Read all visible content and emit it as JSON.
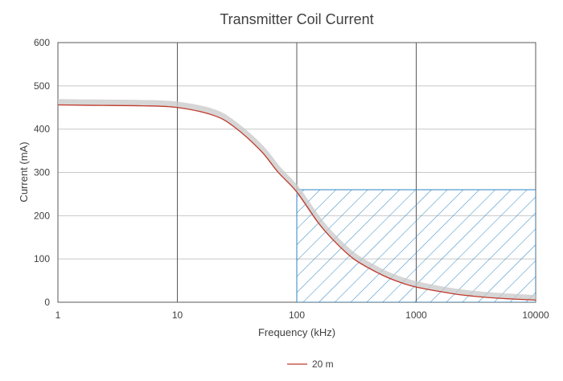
{
  "chart_data": {
    "type": "line",
    "title": "Transmitter Coil Current",
    "xlabel": "Frequency (kHz)",
    "ylabel": "Current (mA)",
    "x_scale": "log",
    "xlim": [
      1,
      10000
    ],
    "ylim": [
      0,
      600
    ],
    "x_ticks": [
      "1",
      "10",
      "100",
      "1000",
      "10000"
    ],
    "y_ticks": [
      "0",
      "100",
      "200",
      "300",
      "400",
      "500",
      "600"
    ],
    "grid": true,
    "legend_position": "bottom-center",
    "series": [
      {
        "name": "20 m",
        "color": "#c0392b",
        "x": [
          1,
          2,
          5,
          10,
          20,
          30,
          50,
          70,
          100,
          150,
          200,
          300,
          500,
          700,
          1000,
          2000,
          3000,
          5000,
          10000
        ],
        "values": [
          456,
          455,
          454,
          450,
          432,
          405,
          350,
          300,
          255,
          185,
          145,
          100,
          65,
          48,
          35,
          20,
          14,
          9,
          5
        ]
      },
      {
        "color": "#c8c8c8",
        "x": [
          1,
          2,
          5,
          10,
          20,
          30,
          50,
          70,
          100,
          150,
          200,
          300,
          500,
          700,
          1000,
          2000,
          3000,
          5000,
          10000
        ],
        "values": [
          463,
          462,
          461,
          457,
          440,
          412,
          358,
          308,
          262,
          193,
          153,
          108,
          72,
          55,
          42,
          26,
          20,
          15,
          10
        ]
      }
    ],
    "hatched_region": {
      "x_start": 100,
      "x_end": 10000,
      "y_top": 260,
      "color": "#2e86c1"
    }
  }
}
